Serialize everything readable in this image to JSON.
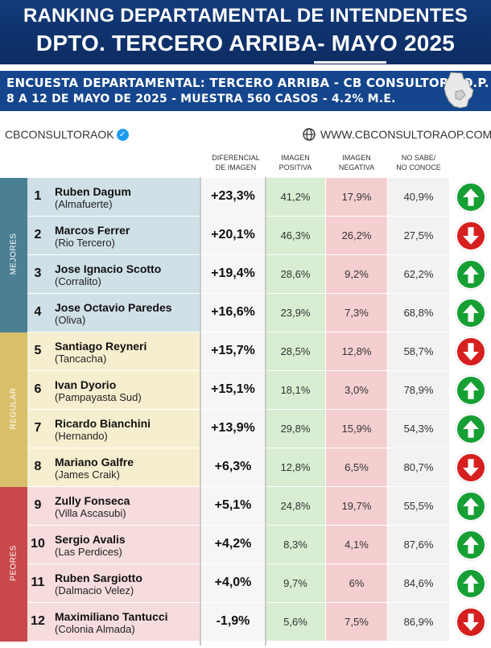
{
  "header": {
    "title_line1": "RANKING DEPARTAMENTAL DE INTENDENTES",
    "title_line2": "DPTO. TERCERO ARRIBA- MAYO 2025"
  },
  "subheader": {
    "line1": "ENCUESTA DEPARTAMENTAL: TERCERO ARRIBA - CB CONSULTORA O.P.",
    "line2": "8 A 12 DE MAYO  DE 2025 - MUESTRA 560 CASOS - 4.2% M.E."
  },
  "brand": {
    "handle": "CBCONSULTORAOK",
    "website": "WWW.CBCONSULTORAOP.COM",
    "map_icon": "province-map-icon",
    "verified_icon": "verified-badge-icon",
    "globe_icon": "globe-icon"
  },
  "columns": {
    "diff": [
      "DIFERENCIAL",
      "DE IMAGEN"
    ],
    "pos": [
      "IMAGEN",
      "POSITIVA"
    ],
    "neg": [
      "IMAGEN",
      "NEGATIVA"
    ],
    "ns": [
      "NO SABE/",
      "NO CONOCE"
    ]
  },
  "groups": [
    {
      "label": "MEJORES",
      "color": "#4a7f94",
      "row_color": "#cfe0e6"
    },
    {
      "label": "REGULAR",
      "color": "#d9bf6a",
      "row_color": "#f6efcf"
    },
    {
      "label": "PEORES",
      "color": "#c9484a",
      "row_color": "#f6dcdd"
    }
  ],
  "colors": {
    "positive_col": "#d8edd2",
    "negative_col": "#f5cfd0",
    "neutral_col": "#f2f2f2",
    "diff_col": "#f6f6f6",
    "arrow_up": "#16a034",
    "arrow_down": "#d61f1f"
  },
  "rows": [
    {
      "rank": "1",
      "name": "Ruben Dagum",
      "location": "(Almafuerte)",
      "diff": "+23,3%",
      "pos": "41,2%",
      "neg": "17,9%",
      "ns": "40,9%",
      "trend": "up"
    },
    {
      "rank": "2",
      "name": "Marcos Ferrer",
      "location": "(Rio Tercero)",
      "diff": "+20,1%",
      "pos": "46,3%",
      "neg": "26,2%",
      "ns": "27,5%",
      "trend": "down"
    },
    {
      "rank": "3",
      "name": "Jose Ignacio Scotto",
      "location": "(Corralito)",
      "diff": "+19,4%",
      "pos": "28,6%",
      "neg": "9,2%",
      "ns": "62,2%",
      "trend": "up"
    },
    {
      "rank": "4",
      "name": "Jose Octavio Paredes",
      "location": "(Oliva)",
      "diff": "+16,6%",
      "pos": "23,9%",
      "neg": "7,3%",
      "ns": "68,8%",
      "trend": "up"
    },
    {
      "rank": "5",
      "name": "Santiago Reyneri",
      "location": "(Tancacha)",
      "diff": "+15,7%",
      "pos": "28,5%",
      "neg": "12,8%",
      "ns": "58,7%",
      "trend": "down"
    },
    {
      "rank": "6",
      "name": "Ivan Dyorio",
      "location": "(Pampayasta Sud)",
      "diff": "+15,1%",
      "pos": "18,1%",
      "neg": "3,0%",
      "ns": "78,9%",
      "trend": "up"
    },
    {
      "rank": "7",
      "name": "Ricardo Bianchini",
      "location": "(Hernando)",
      "diff": "+13,9%",
      "pos": "29,8%",
      "neg": "15,9%",
      "ns": "54,3%",
      "trend": "up"
    },
    {
      "rank": "8",
      "name": "Mariano Galfre",
      "location": "(James Craik)",
      "diff": "+6,3%",
      "pos": "12,8%",
      "neg": "6,5%",
      "ns": "80,7%",
      "trend": "down"
    },
    {
      "rank": "9",
      "name": "Zully Fonseca",
      "location": "(Villa Ascasubi)",
      "diff": "+5,1%",
      "pos": "24,8%",
      "neg": "19,7%",
      "ns": "55,5%",
      "trend": "up"
    },
    {
      "rank": "10",
      "name": "Sergio Avalis",
      "location": "(Las Perdices)",
      "diff": "+4,2%",
      "pos": "8,3%",
      "neg": "4,1%",
      "ns": "87,6%",
      "trend": "up"
    },
    {
      "rank": "11",
      "name": "Ruben Sargiotto",
      "location": "(Dalmacio Velez)",
      "diff": "+4,0%",
      "pos": "9,7%",
      "neg": "6%",
      "ns": "84,6%",
      "trend": "up"
    },
    {
      "rank": "12",
      "name": "Maximiliano Tantucci",
      "location": "(Colonia Almada)",
      "diff": "-1,9%",
      "pos": "5,6%",
      "neg": "7,5%",
      "ns": "86,9%",
      "trend": "down"
    }
  ]
}
